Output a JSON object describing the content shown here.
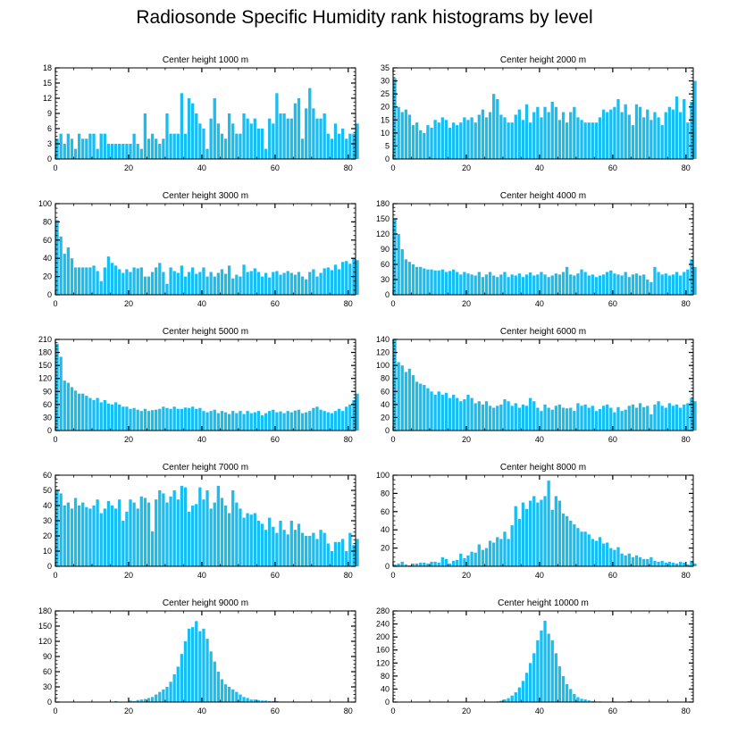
{
  "chart_data": {
    "type": "bar",
    "title": "Radiosonde Specific Humidity rank histograms by level",
    "x_ticks": [
      0,
      20,
      40,
      60,
      80
    ],
    "xlim": [
      0,
      82
    ],
    "bar_color": "#18bdf2",
    "panels": [
      {
        "subtitle": "Center height 1000 m",
        "ylim": [
          0,
          18
        ],
        "yticks": [
          0,
          3,
          6,
          9,
          12,
          15,
          18
        ],
        "values": [
          4,
          5,
          3,
          5,
          4,
          2,
          5,
          4,
          4,
          5,
          5,
          2,
          5,
          5,
          3,
          3,
          3,
          3,
          3,
          3,
          3,
          5,
          3,
          2,
          9,
          4,
          5,
          4,
          3,
          4,
          9,
          5,
          5,
          5,
          13,
          5,
          12,
          11,
          9,
          7,
          6,
          2,
          8,
          12,
          7,
          5,
          4,
          9,
          7,
          5,
          5,
          9,
          8,
          7,
          8,
          6,
          6,
          2,
          8,
          7,
          13,
          9,
          9,
          8,
          8,
          11,
          12,
          4,
          10,
          14,
          10,
          8,
          8,
          9,
          5,
          4,
          7,
          5,
          6,
          4,
          5,
          5,
          7
        ]
      },
      {
        "subtitle": "Center height 2000 m",
        "ylim": [
          0,
          35
        ],
        "yticks": [
          0,
          5,
          10,
          15,
          20,
          25,
          30,
          35
        ],
        "values": [
          31,
          20,
          18,
          19,
          17,
          13,
          14,
          11,
          10,
          13,
          12,
          15,
          14,
          16,
          15,
          12,
          14,
          13,
          14,
          16,
          15,
          16,
          14,
          17,
          19,
          16,
          18,
          25,
          23,
          17,
          16,
          14,
          14,
          17,
          19,
          15,
          21,
          14,
          18,
          20,
          16,
          20,
          18,
          22,
          20,
          15,
          18,
          14,
          18,
          20,
          16,
          15,
          14,
          14,
          14,
          14,
          16,
          19,
          18,
          19,
          20,
          23,
          18,
          21,
          17,
          13,
          21,
          20,
          16,
          19,
          15,
          18,
          16,
          13,
          18,
          20,
          19,
          24,
          18,
          23,
          14,
          22,
          30
        ]
      },
      {
        "subtitle": "Center height 3000 m",
        "ylim": [
          0,
          100
        ],
        "yticks": [
          0,
          20,
          40,
          60,
          80,
          100
        ],
        "values": [
          82,
          64,
          45,
          52,
          40,
          30,
          30,
          30,
          30,
          30,
          32,
          26,
          15,
          30,
          42,
          35,
          32,
          28,
          24,
          28,
          25,
          30,
          29,
          30,
          20,
          20,
          25,
          30,
          35,
          25,
          12,
          30,
          26,
          24,
          32,
          20,
          25,
          30,
          23,
          25,
          30,
          20,
          25,
          20,
          24,
          28,
          23,
          32,
          18,
          22,
          20,
          33,
          25,
          26,
          29,
          25,
          20,
          24,
          19,
          25,
          26,
          22,
          24,
          26,
          24,
          22,
          25,
          20,
          17,
          25,
          28,
          20,
          24,
          29,
          30,
          27,
          33,
          28,
          36,
          37,
          34,
          40,
          38
        ]
      },
      {
        "subtitle": "Center height 4000 m",
        "ylim": [
          0,
          180
        ],
        "yticks": [
          0,
          30,
          60,
          90,
          120,
          150,
          180
        ],
        "values": [
          150,
          120,
          90,
          70,
          65,
          60,
          55,
          55,
          52,
          50,
          50,
          48,
          48,
          50,
          45,
          47,
          50,
          45,
          40,
          45,
          42,
          40,
          38,
          45,
          35,
          40,
          45,
          38,
          35,
          40,
          45,
          35,
          40,
          38,
          42,
          35,
          40,
          44,
          38,
          40,
          45,
          40,
          35,
          38,
          42,
          40,
          45,
          55,
          40,
          38,
          42,
          50,
          45,
          38,
          40,
          35,
          38,
          40,
          45,
          48,
          42,
          40,
          38,
          45,
          35,
          40,
          42,
          38,
          40,
          30,
          25,
          55,
          45,
          40,
          42,
          38,
          40,
          45,
          38,
          45,
          50,
          70,
          55
        ]
      },
      {
        "subtitle": "Center height 5000 m",
        "ylim": [
          0,
          210
        ],
        "yticks": [
          0,
          30,
          60,
          90,
          120,
          150,
          180,
          210
        ],
        "values": [
          200,
          170,
          115,
          110,
          100,
          92,
          85,
          85,
          80,
          75,
          70,
          75,
          65,
          70,
          62,
          60,
          65,
          60,
          55,
          55,
          50,
          52,
          48,
          45,
          50,
          45,
          47,
          48,
          50,
          55,
          52,
          50,
          55,
          50,
          50,
          53,
          52,
          55,
          50,
          52,
          45,
          42,
          45,
          48,
          40,
          45,
          42,
          38,
          45,
          40,
          45,
          38,
          45,
          40,
          42,
          45,
          35,
          40,
          45,
          48,
          42,
          44,
          40,
          45,
          42,
          46,
          48,
          40,
          42,
          45,
          52,
          55,
          48,
          45,
          42,
          40,
          45,
          50,
          45,
          55,
          60,
          70,
          85
        ]
      },
      {
        "subtitle": "Center height 6000 m",
        "ylim": [
          0,
          140
        ],
        "yticks": [
          0,
          20,
          40,
          60,
          80,
          100,
          120,
          140
        ],
        "values": [
          140,
          105,
          100,
          90,
          95,
          85,
          75,
          72,
          70,
          65,
          60,
          55,
          60,
          55,
          58,
          50,
          55,
          50,
          45,
          48,
          55,
          50,
          42,
          45,
          40,
          45,
          38,
          35,
          38,
          40,
          48,
          45,
          38,
          42,
          35,
          40,
          38,
          50,
          45,
          35,
          30,
          40,
          35,
          32,
          38,
          40,
          35,
          34,
          35,
          30,
          42,
          38,
          40,
          35,
          38,
          30,
          33,
          38,
          40,
          35,
          28,
          36,
          30,
          32,
          38,
          40,
          35,
          42,
          36,
          38,
          25,
          40,
          45,
          38,
          35,
          42,
          38,
          40,
          35,
          40,
          42,
          50,
          45
        ]
      },
      {
        "subtitle": "Center height 7000 m",
        "ylim": [
          0,
          60
        ],
        "yticks": [
          0,
          10,
          20,
          30,
          40,
          50,
          60
        ],
        "values": [
          50,
          48,
          40,
          42,
          38,
          45,
          40,
          42,
          39,
          38,
          40,
          44,
          35,
          38,
          43,
          40,
          38,
          44,
          30,
          36,
          44,
          42,
          38,
          46,
          45,
          42,
          23,
          44,
          50,
          48,
          42,
          46,
          50,
          44,
          53,
          52,
          36,
          40,
          41,
          52,
          44,
          50,
          38,
          42,
          53,
          45,
          40,
          35,
          50,
          42,
          38,
          32,
          35,
          34,
          35,
          30,
          28,
          24,
          32,
          26,
          22,
          30,
          24,
          21,
          30,
          24,
          28,
          22,
          20,
          20,
          22,
          18,
          24,
          22,
          15,
          10,
          16,
          16,
          18,
          10,
          22,
          14,
          18
        ]
      },
      {
        "subtitle": "Center height 8000 m",
        "ylim": [
          0,
          100
        ],
        "yticks": [
          0,
          20,
          40,
          60,
          80,
          100
        ],
        "values": [
          2,
          3,
          5,
          2,
          1,
          3,
          3,
          4,
          4,
          3,
          5,
          5,
          4,
          10,
          8,
          3,
          6,
          7,
          14,
          9,
          12,
          16,
          15,
          24,
          18,
          20,
          28,
          26,
          32,
          30,
          38,
          30,
          45,
          66,
          52,
          70,
          63,
          72,
          77,
          70,
          73,
          77,
          94,
          62,
          77,
          72,
          58,
          55,
          50,
          46,
          42,
          38,
          38,
          35,
          30,
          28,
          32,
          25,
          26,
          20,
          18,
          21,
          14,
          12,
          14,
          10,
          12,
          10,
          8,
          8,
          10,
          6,
          5,
          6,
          4,
          5,
          4,
          3,
          5,
          4,
          2,
          6,
          3
        ]
      },
      {
        "subtitle": "Center height 9000 m",
        "ylim": [
          0,
          180
        ],
        "yticks": [
          0,
          30,
          60,
          90,
          120,
          150,
          180
        ],
        "values": [
          0,
          0,
          0,
          0,
          0,
          0,
          0,
          0,
          0,
          0,
          0,
          0,
          0,
          0,
          0,
          0,
          2,
          0,
          0,
          0,
          3,
          2,
          4,
          5,
          6,
          8,
          10,
          15,
          20,
          25,
          30,
          40,
          55,
          70,
          95,
          120,
          145,
          148,
          160,
          140,
          145,
          125,
          100,
          80,
          60,
          45,
          35,
          30,
          25,
          20,
          15,
          10,
          8,
          5,
          5,
          4,
          3,
          3,
          2,
          2,
          2,
          1,
          1,
          1,
          1,
          1,
          1,
          0,
          1,
          0,
          0,
          0,
          0,
          0,
          0,
          0,
          0,
          0,
          0,
          0,
          0,
          0,
          0
        ]
      },
      {
        "subtitle": "Center height 10000 m",
        "ylim": [
          0,
          280
        ],
        "yticks": [
          0,
          40,
          80,
          120,
          160,
          200,
          240,
          280
        ],
        "values": [
          0,
          0,
          0,
          0,
          0,
          0,
          0,
          0,
          0,
          0,
          0,
          0,
          0,
          0,
          0,
          0,
          0,
          0,
          0,
          0,
          0,
          0,
          0,
          0,
          0,
          0,
          0,
          1,
          2,
          4,
          8,
          12,
          20,
          30,
          45,
          65,
          90,
          120,
          150,
          190,
          220,
          250,
          210,
          190,
          150,
          110,
          80,
          55,
          40,
          25,
          15,
          10,
          8,
          5,
          3,
          2,
          2,
          1,
          1,
          1,
          2,
          1,
          1,
          1,
          3,
          2,
          1,
          1,
          1,
          1,
          1,
          1,
          1,
          0,
          1,
          0,
          0,
          0,
          0,
          0,
          0,
          0,
          0
        ]
      }
    ]
  }
}
